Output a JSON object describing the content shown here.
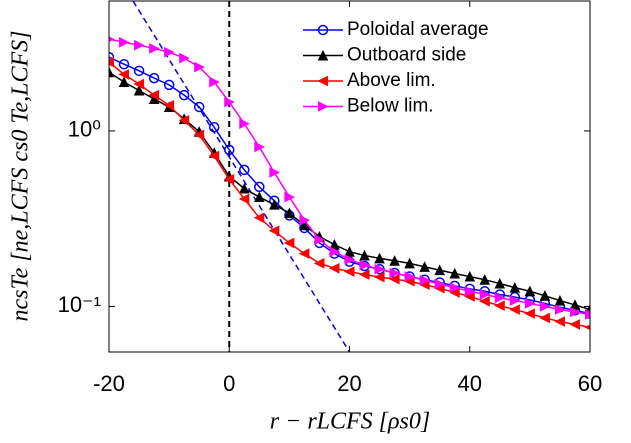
{
  "chart_data": {
    "type": "line",
    "xlabel": "r − rLCFS [ρs0]",
    "ylabel": "ncsTe [ne,LCFS cs0 Te,LCFS]",
    "log_y": true,
    "x": [
      -20,
      -17.5,
      -15,
      -12.5,
      -10,
      -7.5,
      -5,
      -2.5,
      0,
      2.5,
      5,
      7.5,
      10,
      12.5,
      15,
      17.5,
      20,
      22.5,
      25,
      27.5,
      30,
      32.5,
      35,
      37.5,
      40,
      42.5,
      45,
      47.5,
      50,
      52.5,
      55,
      57.5,
      60
    ],
    "series": [
      {
        "name": "Poloidal average",
        "color": "#0000ff",
        "marker": "o",
        "values": [
          2.63,
          2.4,
          2.2,
          2.0,
          1.83,
          1.6,
          1.37,
          1.05,
          0.78,
          0.6,
          0.48,
          0.4,
          0.33,
          0.28,
          0.23,
          0.2,
          0.18,
          0.17,
          0.163,
          0.155,
          0.148,
          0.142,
          0.137,
          0.131,
          0.126,
          0.122,
          0.117,
          0.113,
          0.109,
          0.104,
          0.099,
          0.095,
          0.091
        ]
      },
      {
        "name": "Outboard side",
        "color": "#000000",
        "marker": "^",
        "values": [
          2.16,
          1.9,
          1.7,
          1.52,
          1.37,
          1.17,
          0.99,
          0.75,
          0.55,
          0.47,
          0.42,
          0.38,
          0.34,
          0.29,
          0.25,
          0.225,
          0.205,
          0.195,
          0.188,
          0.182,
          0.176,
          0.168,
          0.161,
          0.154,
          0.148,
          0.142,
          0.135,
          0.128,
          0.122,
          0.115,
          0.108,
          0.102,
          0.096
        ]
      },
      {
        "name": "Above lim.",
        "color": "#ff0000",
        "marker": "<",
        "values": [
          2.47,
          2.1,
          1.85,
          1.6,
          1.4,
          1.15,
          0.95,
          0.72,
          0.53,
          0.41,
          0.32,
          0.27,
          0.23,
          0.2,
          0.176,
          0.165,
          0.158,
          0.152,
          0.147,
          0.143,
          0.139,
          0.133,
          0.127,
          0.12,
          0.114,
          0.107,
          0.101,
          0.096,
          0.091,
          0.086,
          0.082,
          0.079,
          0.076
        ]
      },
      {
        "name": "Below lim.",
        "color": "#ff00ff",
        "marker": ">",
        "values": [
          3.33,
          3.2,
          3.08,
          2.95,
          2.81,
          2.6,
          2.31,
          1.9,
          1.46,
          1.1,
          0.81,
          0.58,
          0.42,
          0.31,
          0.24,
          0.205,
          0.185,
          0.172,
          0.163,
          0.155,
          0.148,
          0.141,
          0.134,
          0.128,
          0.122,
          0.117,
          0.112,
          0.108,
          0.104,
          0.1,
          0.096,
          0.093,
          0.09
        ]
      }
    ],
    "fit_line": {
      "x": [
        -16,
        20
      ],
      "values": [
        5.5,
        0.055
      ],
      "color": "#0000ff"
    },
    "vline": {
      "x": 0,
      "color": "#000000"
    },
    "xlim": [
      -20,
      60
    ],
    "ylim": [
      0.055,
      5.5
    ],
    "xticks": [
      -20,
      0,
      20,
      40,
      60
    ],
    "yticks": [
      {
        "value": 0.1,
        "label": "10⁻¹"
      },
      {
        "value": 1,
        "label": "10⁰"
      }
    ],
    "legend": "upper right"
  }
}
